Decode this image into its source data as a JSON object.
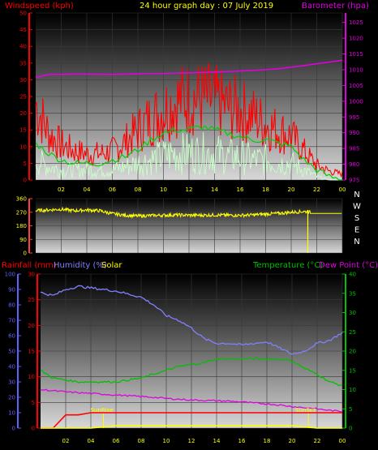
{
  "header": {
    "windspeed_label": "Windspeed (kph)",
    "title": "24 hour graph day : 07 July 2019",
    "barometer_label": "Barometer (hpa)"
  },
  "bottom_header": {
    "rainfall_label": "Rainfall (mm)",
    "humidity_label": "Humidity (%)",
    "solar_label": "Solar",
    "temperature_label": "Temperature (°C)",
    "dewpoint_label": "Dew Point (°C)"
  },
  "colors": {
    "windspeed": "#ff0000",
    "gust_avg": "#00d000",
    "wind_avg": "#c8ffc8",
    "barometer": "#e000e0",
    "direction": "#ffff00",
    "rainfall": "#ff0000",
    "humidity": "#8080ff",
    "solar": "#ffff00",
    "temperature": "#00c000",
    "dewpoint": "#e000e0"
  },
  "chart_data": [
    {
      "type": "line",
      "name": "wind-barometer",
      "x_ticks": [
        "02",
        "04",
        "06",
        "08",
        "10",
        "12",
        "14",
        "16",
        "18",
        "20",
        "22",
        "00"
      ],
      "y_left_ticks": [
        0,
        5,
        10,
        15,
        20,
        25,
        30,
        35,
        40,
        45,
        50
      ],
      "y_left_range": [
        0,
        50
      ],
      "y_right_ticks": [
        975,
        980,
        985,
        990,
        995,
        1000,
        1005,
        1010,
        1015,
        1020,
        1025
      ],
      "y_right_range": [
        975,
        1028
      ],
      "series": [
        {
          "key": "gust",
          "hours": [
            0,
            1,
            2,
            3,
            4,
            5,
            6,
            7,
            8,
            9,
            10,
            11,
            12,
            13,
            14,
            15,
            16,
            17,
            18,
            19,
            20,
            21,
            22,
            23,
            24
          ],
          "values": [
            26,
            16,
            12,
            10,
            9,
            9,
            10,
            13,
            17,
            21,
            24,
            27,
            28,
            28,
            27,
            25,
            24,
            22,
            19,
            17,
            15,
            10,
            5,
            3,
            2
          ]
        },
        {
          "key": "avg",
          "hours": [
            0,
            1,
            2,
            3,
            4,
            5,
            6,
            7,
            8,
            9,
            10,
            11,
            12,
            13,
            14,
            15,
            16,
            17,
            18,
            19,
            20,
            21,
            22,
            23,
            24
          ],
          "values": [
            11,
            8,
            6,
            5,
            5,
            5,
            6,
            7,
            9,
            12,
            14,
            15,
            15,
            16,
            15,
            14,
            13,
            12,
            12,
            11,
            10,
            6,
            3,
            1,
            0
          ]
        },
        {
          "key": "wind",
          "hours": [
            0,
            1,
            2,
            3,
            4,
            5,
            6,
            7,
            8,
            9,
            10,
            11,
            12,
            13,
            14,
            15,
            16,
            17,
            18,
            19,
            20,
            21,
            22,
            23,
            24
          ],
          "values": [
            6,
            4,
            3,
            3,
            3,
            3,
            3,
            4,
            5,
            6,
            7,
            8,
            8,
            8,
            8,
            7,
            7,
            6,
            6,
            5,
            5,
            3,
            1,
            0,
            0
          ]
        },
        {
          "key": "barometer",
          "hours": [
            0,
            1,
            2,
            3,
            4,
            5,
            6,
            7,
            8,
            9,
            10,
            11,
            12,
            13,
            14,
            15,
            16,
            17,
            18,
            19,
            20,
            21,
            22,
            23,
            24
          ],
          "values": [
            1007.5,
            1008.5,
            1008.5,
            1008.6,
            1008.6,
            1008.5,
            1008.5,
            1008.6,
            1008.7,
            1008.8,
            1008.8,
            1008.9,
            1009.0,
            1009.1,
            1009.3,
            1009.4,
            1009.6,
            1009.8,
            1010.0,
            1010.3,
            1010.8,
            1011.3,
            1011.9,
            1012.4,
            1013.0
          ]
        }
      ]
    },
    {
      "type": "scatter",
      "name": "wind-direction",
      "x_ticks": [
        "02",
        "04",
        "06",
        "08",
        "10",
        "12",
        "14",
        "16",
        "18",
        "20",
        "22",
        "00"
      ],
      "y_ticks": [
        0,
        90,
        180,
        270,
        360
      ],
      "y_range": [
        0,
        360
      ],
      "compass_labels": [
        "N",
        "W",
        "S",
        "E",
        "N"
      ],
      "series": [
        {
          "key": "direction",
          "hours": [
            0,
            1,
            2,
            3,
            4,
            5,
            6,
            7,
            8,
            9,
            10,
            11,
            12,
            13,
            14,
            15,
            16,
            17,
            18,
            19,
            20,
            21,
            22,
            23,
            24
          ],
          "values": [
            280,
            285,
            290,
            280,
            285,
            280,
            260,
            250,
            245,
            248,
            250,
            252,
            250,
            250,
            252,
            250,
            250,
            252,
            258,
            262,
            270,
            275,
            265,
            262,
            262
          ]
        }
      ],
      "marker_hour": 21.3
    },
    {
      "type": "line",
      "name": "temperature-humidity",
      "x_ticks": [
        "02",
        "04",
        "06",
        "08",
        "10",
        "12",
        "14",
        "16",
        "18",
        "20",
        "22",
        "00"
      ],
      "y_rain_ticks": [
        0,
        10,
        20,
        30,
        40,
        50,
        60,
        70,
        80,
        90,
        100
      ],
      "y_rain_range": [
        0,
        100
      ],
      "y_left_ticks": [
        0,
        5,
        10,
        15,
        20,
        25,
        30
      ],
      "y_left_range": [
        0,
        30
      ],
      "y_right_ticks": [
        0,
        5,
        10,
        15,
        20,
        25,
        30,
        35,
        40
      ],
      "y_right_range": [
        0,
        40
      ],
      "sunrise_label": "SunRise",
      "sunset_label": "SunSet",
      "sunrise_hour": 5,
      "sunset_hour": 21.3,
      "series": [
        {
          "key": "humidity",
          "hours": [
            0,
            1,
            2,
            3,
            4,
            5,
            6,
            7,
            8,
            9,
            10,
            11,
            12,
            13,
            14,
            15,
            16,
            17,
            18,
            19,
            20,
            21,
            22,
            23,
            24
          ],
          "values": [
            88,
            86,
            90,
            92,
            91,
            90,
            89,
            87,
            85,
            80,
            73,
            70,
            65,
            58,
            55,
            55,
            54,
            55,
            56,
            52,
            48,
            50,
            55,
            57,
            62
          ]
        },
        {
          "key": "temperature",
          "hours": [
            0,
            1,
            2,
            3,
            4,
            5,
            6,
            7,
            8,
            9,
            10,
            11,
            12,
            13,
            14,
            15,
            16,
            17,
            18,
            19,
            20,
            21,
            22,
            23,
            24
          ],
          "values": [
            15,
            13,
            12.5,
            12,
            12,
            12,
            12,
            12.5,
            13,
            14,
            15,
            16,
            16.5,
            17,
            18,
            18,
            18,
            18,
            18,
            18,
            17.5,
            15.5,
            14,
            12,
            11
          ]
        },
        {
          "key": "dewpoint",
          "hours": [
            0,
            1,
            2,
            3,
            4,
            5,
            6,
            7,
            8,
            9,
            10,
            11,
            12,
            13,
            14,
            15,
            16,
            17,
            18,
            19,
            20,
            21,
            22,
            23,
            24
          ],
          "values": [
            10,
            9.7,
            9.4,
            9.2,
            9,
            8.8,
            8.6,
            8.4,
            8.2,
            8,
            7.7,
            7.5,
            7.3,
            7.2,
            7.1,
            7,
            6.8,
            6.5,
            6.3,
            6,
            5.6,
            5.3,
            5,
            4.6,
            4.3
          ]
        },
        {
          "key": "rainfall",
          "hours": [
            0,
            1,
            2,
            3,
            4,
            5,
            6,
            7,
            8,
            9,
            10,
            11,
            12,
            13,
            14,
            15,
            16,
            17,
            18,
            19,
            20,
            21,
            22,
            23,
            24
          ],
          "values": [
            0,
            0,
            8.6,
            8.6,
            10,
            10,
            10,
            10,
            10,
            10,
            10,
            10,
            10,
            10,
            10,
            10,
            10,
            10,
            10,
            10,
            10,
            10,
            10,
            10,
            10
          ]
        },
        {
          "key": "solar",
          "hours": [
            0,
            1,
            2,
            3,
            4,
            5,
            6,
            7,
            8,
            9,
            10,
            11,
            12,
            13,
            14,
            15,
            16,
            17,
            18,
            19,
            20,
            21,
            22,
            23,
            24
          ],
          "values": [
            0,
            0,
            0,
            0,
            0,
            0.5,
            1,
            1,
            1,
            1,
            1,
            1,
            1,
            1,
            1,
            1,
            1,
            1,
            1,
            1,
            1,
            0.5,
            0,
            0,
            0
          ]
        }
      ]
    }
  ]
}
